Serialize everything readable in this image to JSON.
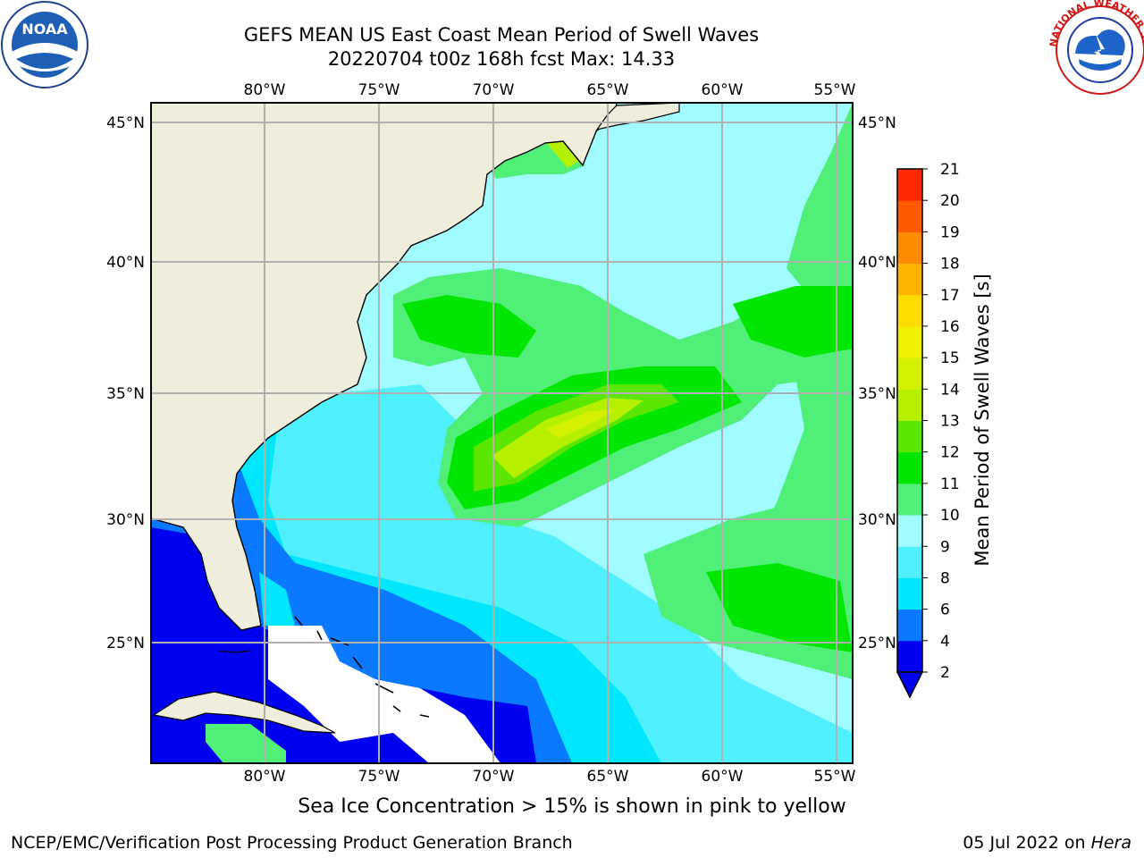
{
  "header": {
    "title_line1": "GEFS MEAN US East Coast Mean Period of Swell Waves",
    "title_line2": "20220704 t00z 168h fcst   Max: 14.33"
  },
  "caption": "Sea Ice Concentration > 15% is shown in pink to yellow",
  "footer": {
    "left": "NCEP/EMC/Verification Post Processing Product Generation Branch",
    "date": "05 Jul 2022 on ",
    "host": "Hera"
  },
  "logos": {
    "noaa_text": "NOAA",
    "nws_text": "NATIONAL WEATHER SERVICE"
  },
  "map": {
    "lon_labels": [
      "80°W",
      "75°W",
      "70°W",
      "65°W",
      "60°W",
      "55°W"
    ],
    "lat_labels": [
      "45°N",
      "40°N",
      "35°N",
      "30°N",
      "25°N"
    ],
    "land_color": "#efeddc",
    "grid_color": "#b0b0b0"
  },
  "colorbar": {
    "label": "Mean Period of Swell Waves [s]",
    "levels": [
      2,
      4,
      6,
      8,
      9,
      10,
      11,
      12,
      13,
      14,
      15,
      16,
      17,
      18,
      19,
      20,
      21
    ],
    "colors": [
      "#0000f0",
      "#0a78ff",
      "#00e6ff",
      "#50f0ff",
      "#a0fcff",
      "#50f078",
      "#00e600",
      "#5ae600",
      "#b4f000",
      "#d2f000",
      "#f0f000",
      "#ffdc00",
      "#ffb400",
      "#ff8c00",
      "#ff5a00",
      "#ff2800",
      "#ff0000"
    ],
    "extend_color": "#0000f0"
  }
}
